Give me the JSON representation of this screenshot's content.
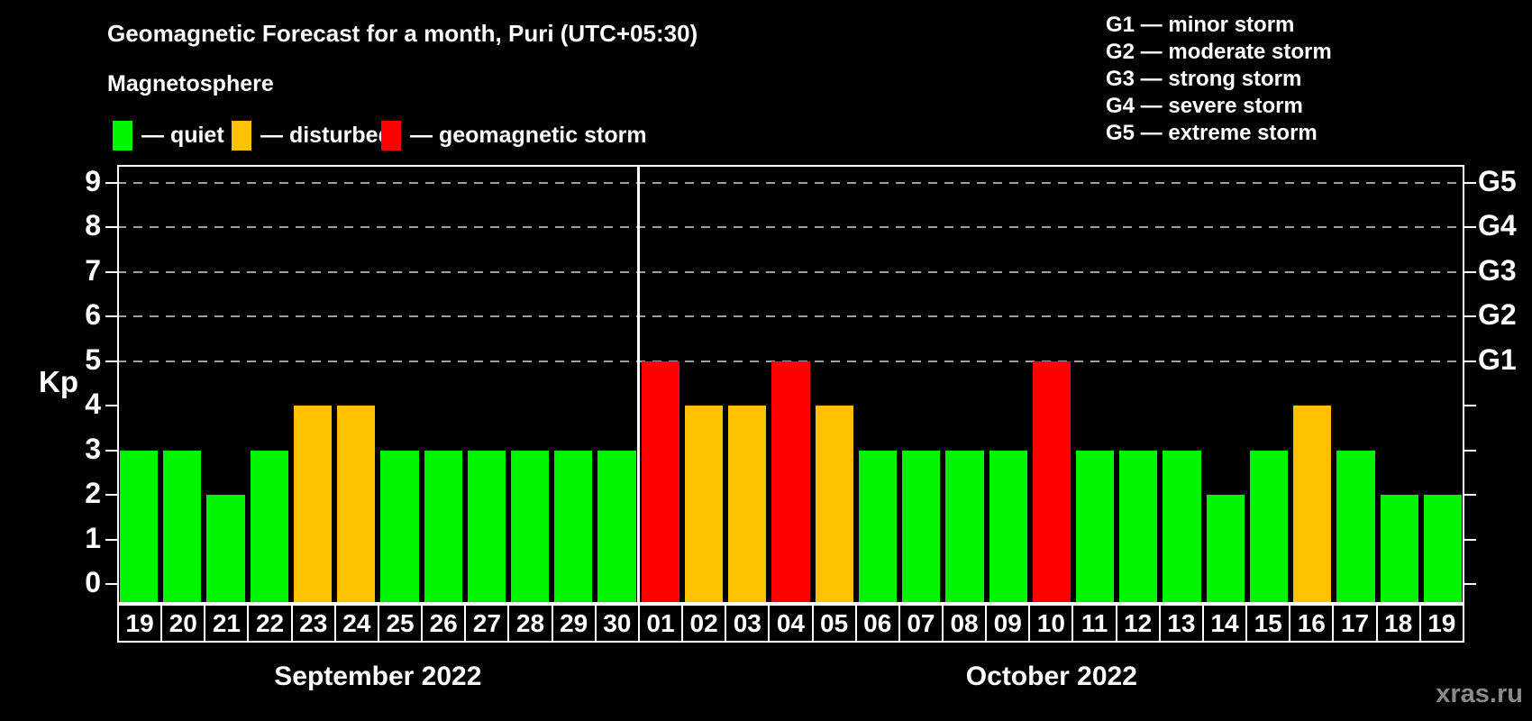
{
  "title": "Geomagnetic Forecast for a month, Puri (UTC+05:30)",
  "subtitle": "Magnetosphere",
  "legend": {
    "items": [
      {
        "key": "quiet",
        "label": "— quiet",
        "color": "#00f400"
      },
      {
        "key": "disturbed",
        "label": "— disturbed",
        "color": "#ffc100"
      },
      {
        "key": "storm",
        "label": "— geomagnetic storm",
        "color": "#ff0000"
      }
    ]
  },
  "storm_scale_legend": [
    "G1 — minor storm",
    "G2 — moderate storm",
    "G3 — strong storm",
    "G4 — severe storm",
    "G5 — extreme storm"
  ],
  "watermark": "xras.ru",
  "chart_data": {
    "type": "bar",
    "title": "Geomagnetic Forecast for a month, Puri (UTC+05:30)",
    "ylabel": "Kp",
    "ylim": [
      0,
      9
    ],
    "yticks": [
      0,
      1,
      2,
      3,
      4,
      5,
      6,
      7,
      8,
      9
    ],
    "gridlines_at": [
      5,
      6,
      7,
      8,
      9
    ],
    "grid": "dashed horizontal at storm levels only",
    "legend_position": "top",
    "right_axis": [
      {
        "kp": 5,
        "label": "G1"
      },
      {
        "kp": 6,
        "label": "G2"
      },
      {
        "kp": 7,
        "label": "G3"
      },
      {
        "kp": 8,
        "label": "G4"
      },
      {
        "kp": 9,
        "label": "G5"
      }
    ],
    "status_colors": {
      "quiet": "#00f400",
      "disturbed": "#ffc100",
      "storm": "#ff0000"
    },
    "months": [
      {
        "label": "September 2022",
        "days": [
          {
            "day": "19",
            "kp": 3,
            "status": "quiet"
          },
          {
            "day": "20",
            "kp": 3,
            "status": "quiet"
          },
          {
            "day": "21",
            "kp": 2,
            "status": "quiet"
          },
          {
            "day": "22",
            "kp": 3,
            "status": "quiet"
          },
          {
            "day": "23",
            "kp": 4,
            "status": "disturbed"
          },
          {
            "day": "24",
            "kp": 4,
            "status": "disturbed"
          },
          {
            "day": "25",
            "kp": 3,
            "status": "quiet"
          },
          {
            "day": "26",
            "kp": 3,
            "status": "quiet"
          },
          {
            "day": "27",
            "kp": 3,
            "status": "quiet"
          },
          {
            "day": "28",
            "kp": 3,
            "status": "quiet"
          },
          {
            "day": "29",
            "kp": 3,
            "status": "quiet"
          },
          {
            "day": "30",
            "kp": 3,
            "status": "quiet"
          }
        ]
      },
      {
        "label": "October 2022",
        "days": [
          {
            "day": "01",
            "kp": 5,
            "status": "storm"
          },
          {
            "day": "02",
            "kp": 4,
            "status": "disturbed"
          },
          {
            "day": "03",
            "kp": 4,
            "status": "disturbed"
          },
          {
            "day": "04",
            "kp": 5,
            "status": "storm"
          },
          {
            "day": "05",
            "kp": 4,
            "status": "disturbed"
          },
          {
            "day": "06",
            "kp": 3,
            "status": "quiet"
          },
          {
            "day": "07",
            "kp": 3,
            "status": "quiet"
          },
          {
            "day": "08",
            "kp": 3,
            "status": "quiet"
          },
          {
            "day": "09",
            "kp": 3,
            "status": "quiet"
          },
          {
            "day": "10",
            "kp": 5,
            "status": "storm"
          },
          {
            "day": "11",
            "kp": 3,
            "status": "quiet"
          },
          {
            "day": "12",
            "kp": 3,
            "status": "quiet"
          },
          {
            "day": "13",
            "kp": 3,
            "status": "quiet"
          },
          {
            "day": "14",
            "kp": 2,
            "status": "quiet"
          },
          {
            "day": "15",
            "kp": 3,
            "status": "quiet"
          },
          {
            "day": "16",
            "kp": 4,
            "status": "disturbed"
          },
          {
            "day": "17",
            "kp": 3,
            "status": "quiet"
          },
          {
            "day": "18",
            "kp": 2,
            "status": "quiet"
          },
          {
            "day": "19",
            "kp": 2,
            "status": "quiet"
          }
        ]
      }
    ]
  }
}
